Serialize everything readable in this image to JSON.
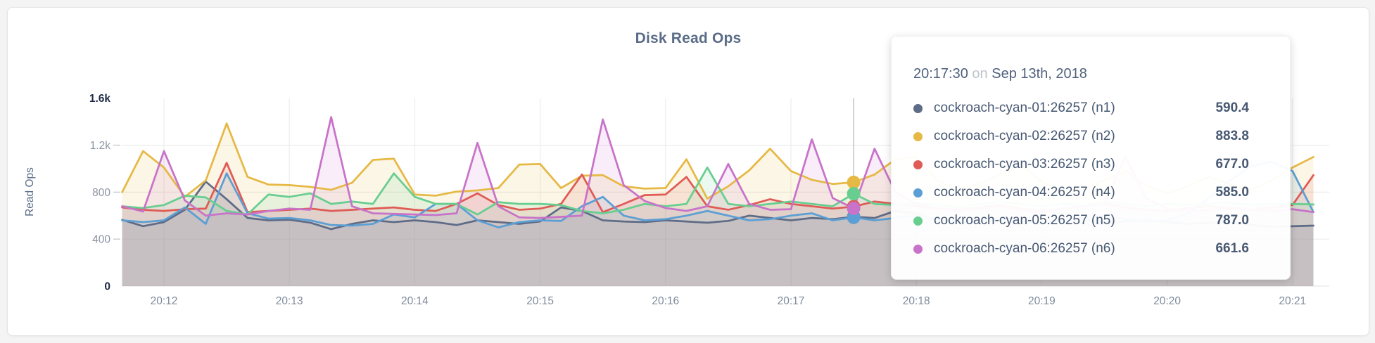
{
  "style": {
    "page_background": "#f4f4f4",
    "card_background": "#ffffff",
    "card_border": "#e4e4e4",
    "grid": "#ececec",
    "hover_line": "#c2c2c2",
    "axis_text": "#8b94a3",
    "axis_text_strong": "#1e2b47",
    "x_axis_text": "#7f8b9d",
    "title_color": "#5a6c87",
    "tooltip_text": "#475872",
    "tooltip_muted": "#c0c4cb"
  },
  "tooltip": {
    "time": "20:17:30",
    "conjunction": "on",
    "date": "Sep 13th, 2018",
    "rows": [
      {
        "name": "cockroach-cyan-01:26257 (n1)",
        "value": "590.4",
        "color": "#5F6C87"
      },
      {
        "name": "cockroach-cyan-02:26257 (n2)",
        "value": "883.8",
        "color": "#E6B945"
      },
      {
        "name": "cockroach-cyan-03:26257 (n3)",
        "value": "677.0",
        "color": "#DF5B55"
      },
      {
        "name": "cockroach-cyan-04:26257 (n4)",
        "value": "585.0",
        "color": "#5C9FD4"
      },
      {
        "name": "cockroach-cyan-05:26257 (n5)",
        "value": "787.0",
        "color": "#67CE90"
      },
      {
        "name": "cockroach-cyan-06:26257 (n6)",
        "value": "661.6",
        "color": "#C873C9"
      }
    ]
  },
  "chart_data": {
    "type": "area",
    "title": "Disk Read Ops",
    "ylabel": "Read Ops",
    "ylim": [
      0,
      1600
    ],
    "grid": true,
    "legend_position": "none",
    "x_date": "Sep 13th, 2018",
    "x_start": "20:11:40",
    "x_interval_seconds": 10,
    "x_ticks": [
      "20:12",
      "20:13",
      "20:14",
      "20:15",
      "20:16",
      "20:17",
      "20:18",
      "20:19",
      "20:20",
      "20:21"
    ],
    "y_ticks": [
      {
        "value": 0,
        "label": "0"
      },
      {
        "value": 400,
        "label": "400"
      },
      {
        "value": 800,
        "label": "800"
      },
      {
        "value": 1200,
        "label": "1.2k"
      },
      {
        "value": 1600,
        "label": "1.6k"
      }
    ],
    "hover": {
      "time": "20:17:30",
      "index": 35
    },
    "series": [
      {
        "id": "n1",
        "name": "cockroach-cyan-01:26257 (n1)",
        "color": "#5F6C87",
        "values": [
          565,
          510,
          545,
          650,
          890,
          740,
          580,
          560,
          565,
          540,
          485,
          530,
          560,
          545,
          560,
          545,
          520,
          560,
          545,
          530,
          550,
          670,
          640,
          560,
          550,
          545,
          560,
          550,
          540,
          555,
          600,
          580,
          560,
          580,
          570,
          590.4,
          580,
          640,
          620,
          560,
          540,
          555,
          570,
          545,
          530,
          555,
          565,
          540,
          550,
          560,
          545,
          530,
          540,
          555,
          520,
          505,
          510,
          515
        ]
      },
      {
        "id": "n2",
        "name": "cockroach-cyan-02:26257 (n2)",
        "color": "#E6B945",
        "values": [
          800,
          1150,
          1010,
          760,
          900,
          1385,
          930,
          865,
          860,
          845,
          820,
          880,
          1075,
          1085,
          780,
          770,
          805,
          815,
          835,
          1035,
          1040,
          835,
          940,
          945,
          850,
          830,
          835,
          1080,
          745,
          850,
          985,
          1170,
          980,
          905,
          870,
          883.8,
          950,
          1080,
          1100,
          900,
          820,
          870,
          950,
          1030,
          890,
          800,
          830,
          900,
          980,
          860,
          790,
          850,
          930,
          870,
          820,
          900,
          1010,
          1100
        ]
      },
      {
        "id": "n3",
        "name": "cockroach-cyan-03:26257 (n3)",
        "color": "#DF5B55",
        "values": [
          670,
          650,
          640,
          655,
          660,
          1050,
          630,
          640,
          650,
          660,
          640,
          650,
          660,
          670,
          650,
          640,
          700,
          790,
          690,
          650,
          660,
          700,
          950,
          630,
          700,
          775,
          780,
          930,
          680,
          650,
          690,
          740,
          700,
          680,
          660,
          677,
          720,
          700,
          680,
          660,
          650,
          670,
          690,
          660,
          640,
          660,
          680,
          700,
          670,
          650,
          640,
          665,
          680,
          660,
          650,
          670,
          690,
          945
        ]
      },
      {
        "id": "n4",
        "name": "cockroach-cyan-04:26257 (n4)",
        "color": "#5C9FD4",
        "values": [
          560,
          545,
          560,
          670,
          530,
          960,
          620,
          575,
          580,
          560,
          520,
          515,
          530,
          610,
          585,
          700,
          700,
          560,
          500,
          545,
          560,
          555,
          680,
          760,
          600,
          560,
          570,
          600,
          640,
          600,
          560,
          570,
          600,
          620,
          560,
          585,
          560,
          580,
          600,
          570,
          550,
          560,
          580,
          550,
          540,
          560,
          580,
          600,
          570,
          550,
          560,
          620,
          750,
          900,
          1020,
          1060,
          980,
          630
        ]
      },
      {
        "id": "n5",
        "name": "cockroach-cyan-05:26257 (n5)",
        "color": "#67CE90",
        "values": [
          680,
          665,
          690,
          770,
          755,
          640,
          610,
          780,
          760,
          790,
          700,
          720,
          700,
          960,
          760,
          700,
          700,
          610,
          715,
          700,
          700,
          690,
          640,
          620,
          650,
          700,
          680,
          700,
          1010,
          700,
          680,
          700,
          720,
          700,
          680,
          787,
          700,
          690,
          710,
          690,
          670,
          700,
          720,
          700,
          680,
          700,
          690,
          710,
          700,
          680,
          700,
          690,
          700,
          710,
          690,
          700,
          700,
          695
        ]
      },
      {
        "id": "n6",
        "name": "cockroach-cyan-06:26257 (n6)",
        "color": "#C873C9",
        "values": [
          680,
          635,
          1150,
          730,
          600,
          620,
          610,
          640,
          660,
          650,
          1440,
          680,
          620,
          615,
          610,
          605,
          620,
          1220,
          680,
          585,
          580,
          590,
          600,
          1420,
          860,
          725,
          665,
          640,
          680,
          1040,
          700,
          650,
          655,
          1250,
          750,
          661.6,
          1170,
          800,
          700,
          660,
          640,
          660,
          680,
          650,
          630,
          660,
          680,
          700,
          1100,
          750,
          660,
          640,
          650,
          670,
          650,
          640,
          655,
          630
        ]
      }
    ]
  }
}
